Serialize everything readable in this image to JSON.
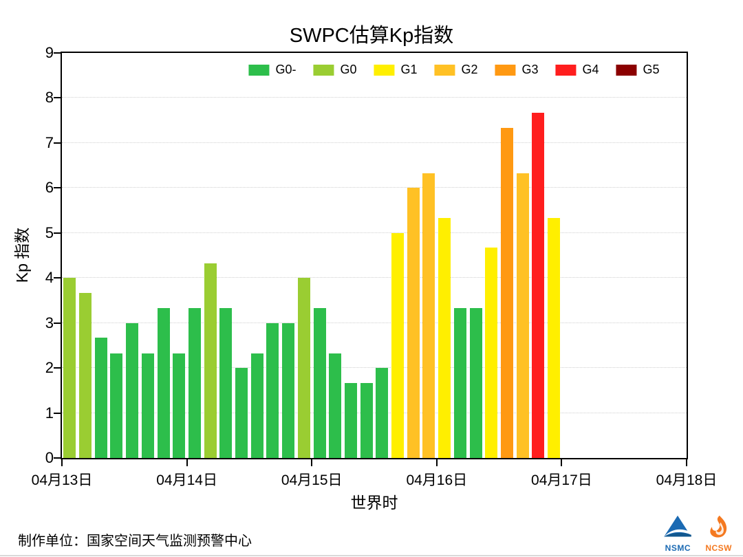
{
  "chart_data": {
    "type": "bar",
    "title": "SWPC估算Kp指数",
    "xlabel": "世界时",
    "ylabel": "Kp 指数",
    "ylim": [
      0,
      9
    ],
    "yticks": [
      0,
      1,
      2,
      3,
      4,
      5,
      6,
      7,
      8,
      9
    ],
    "x_tick_labels": [
      "04月13日",
      "04月14日",
      "04月15日",
      "04月16日",
      "04月17日",
      "04月18日"
    ],
    "num_days": 5,
    "slots_per_day": 8,
    "legend": [
      {
        "label": "G0-",
        "color": "#2dbe4b"
      },
      {
        "label": "G0",
        "color": "#9acd32"
      },
      {
        "label": "G1",
        "color": "#ffef00"
      },
      {
        "label": "G2",
        "color": "#ffc125"
      },
      {
        "label": "G3",
        "color": "#ff9912"
      },
      {
        "label": "G4",
        "color": "#ff1e1e"
      },
      {
        "label": "G5",
        "color": "#8b0000"
      }
    ],
    "bars": [
      {
        "slot": 0,
        "value": 4.0,
        "level": "G0"
      },
      {
        "slot": 1,
        "value": 3.67,
        "level": "G0"
      },
      {
        "slot": 2,
        "value": 2.67,
        "level": "G0-"
      },
      {
        "slot": 3,
        "value": 2.33,
        "level": "G0-"
      },
      {
        "slot": 4,
        "value": 3.0,
        "level": "G0-"
      },
      {
        "slot": 5,
        "value": 2.33,
        "level": "G0-"
      },
      {
        "slot": 6,
        "value": 3.33,
        "level": "G0-"
      },
      {
        "slot": 7,
        "value": 2.33,
        "level": "G0-"
      },
      {
        "slot": 8,
        "value": 3.33,
        "level": "G0-"
      },
      {
        "slot": 9,
        "value": 4.33,
        "level": "G0"
      },
      {
        "slot": 10,
        "value": 3.33,
        "level": "G0-"
      },
      {
        "slot": 11,
        "value": 2.0,
        "level": "G0-"
      },
      {
        "slot": 12,
        "value": 2.33,
        "level": "G0-"
      },
      {
        "slot": 13,
        "value": 3.0,
        "level": "G0-"
      },
      {
        "slot": 14,
        "value": 3.0,
        "level": "G0-"
      },
      {
        "slot": 15,
        "value": 4.0,
        "level": "G0"
      },
      {
        "slot": 16,
        "value": 3.33,
        "level": "G0-"
      },
      {
        "slot": 17,
        "value": 2.33,
        "level": "G0-"
      },
      {
        "slot": 18,
        "value": 1.67,
        "level": "G0-"
      },
      {
        "slot": 19,
        "value": 1.67,
        "level": "G0-"
      },
      {
        "slot": 20,
        "value": 2.0,
        "level": "G0-"
      },
      {
        "slot": 21,
        "value": 5.0,
        "level": "G1"
      },
      {
        "slot": 22,
        "value": 6.0,
        "level": "G2"
      },
      {
        "slot": 23,
        "value": 6.33,
        "level": "G2"
      },
      {
        "slot": 24,
        "value": 5.33,
        "level": "G1"
      },
      {
        "slot": 25,
        "value": 3.33,
        "level": "G0-"
      },
      {
        "slot": 26,
        "value": 3.33,
        "level": "G0-"
      },
      {
        "slot": 27,
        "value": 4.67,
        "level": "G1"
      },
      {
        "slot": 28,
        "value": 7.33,
        "level": "G3"
      },
      {
        "slot": 29,
        "value": 6.33,
        "level": "G2"
      },
      {
        "slot": 30,
        "value": 7.67,
        "level": "G4"
      },
      {
        "slot": 31,
        "value": 5.33,
        "level": "G1"
      }
    ]
  },
  "footer": {
    "credit": "制作单位：国家空间天气监测预警中心",
    "logos": [
      {
        "label": "NSMC",
        "color": "#1b6ab3"
      },
      {
        "label": "NCSW",
        "color": "#f47920"
      }
    ]
  }
}
